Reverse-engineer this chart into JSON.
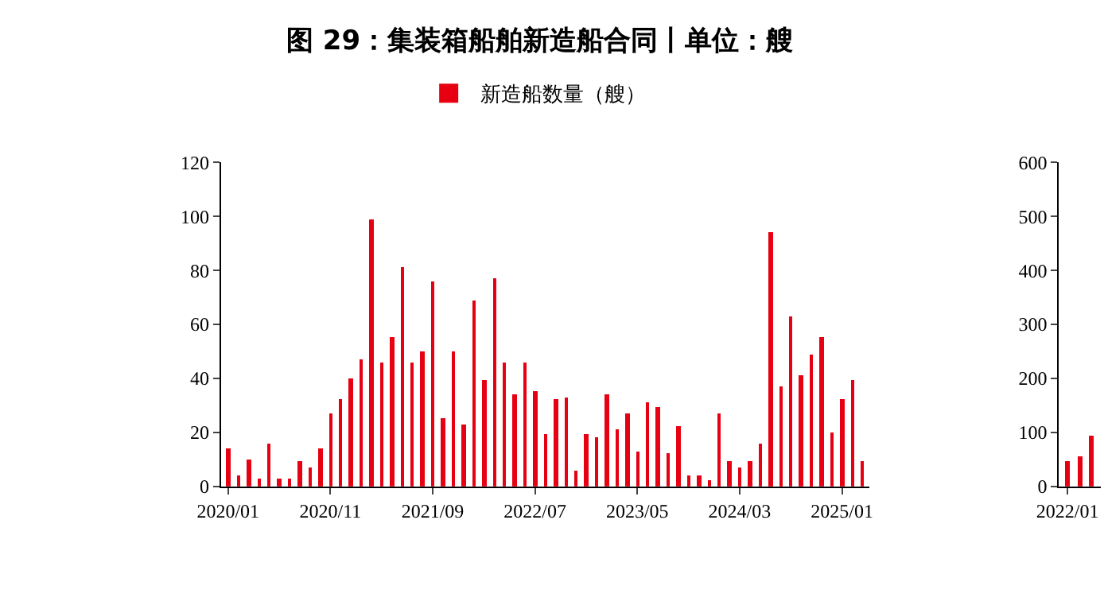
{
  "chart_data": [
    {
      "type": "bar",
      "title": "图 29：集装箱船舶新造船合同丨单位：艘",
      "categories": [
        "2020/01",
        null,
        null,
        null,
        null,
        null,
        null,
        null,
        null,
        null,
        "2020/11",
        null,
        null,
        null,
        null,
        null,
        null,
        null,
        null,
        null,
        "2021/09",
        null,
        null,
        null,
        null,
        null,
        null,
        null,
        null,
        null,
        "2022/07",
        null,
        null,
        null,
        null,
        null,
        null,
        null,
        null,
        null,
        "2023/05",
        null,
        null,
        null,
        null,
        null,
        null,
        null,
        null,
        null,
        "2024/03",
        null,
        null,
        null,
        null,
        null,
        null,
        null,
        null,
        null,
        "2025/01",
        null,
        null
      ],
      "series": [
        {
          "name": "新造船数量（艘）",
          "color": "#e60012",
          "values": [
            14,
            4,
            10,
            3,
            16,
            3,
            3,
            9,
            7,
            14,
            27,
            32,
            40,
            47,
            99,
            46,
            55,
            81,
            46,
            50,
            76,
            25,
            50,
            23,
            69,
            39,
            77,
            46,
            34,
            46,
            35,
            19,
            32,
            33,
            6,
            19,
            18,
            34,
            21,
            27,
            13,
            31,
            29,
            12,
            22,
            4,
            4,
            2,
            27,
            9,
            7,
            9,
            16,
            94,
            37,
            63,
            41,
            49,
            55,
            20,
            32,
            39,
            9
          ]
        }
      ],
      "ylim": [
        0,
        120
      ],
      "yticks": [
        0,
        20,
        40,
        60,
        80,
        100,
        120
      ],
      "grid": false,
      "legend": "top"
    },
    {
      "type": "bar",
      "categories": [
        "2022/01",
        null,
        null
      ],
      "series": [
        {
          "color": "#e60012",
          "values": [
            45,
            55,
            93
          ]
        }
      ],
      "ylim": [
        0,
        600
      ],
      "yticks": [
        0,
        100,
        200,
        300,
        400,
        500,
        600
      ],
      "grid": false,
      "legend": false
    }
  ]
}
